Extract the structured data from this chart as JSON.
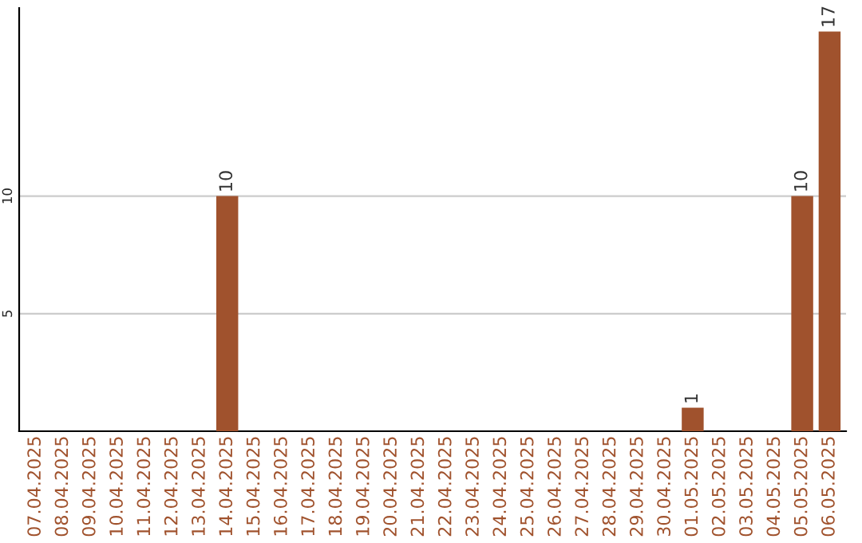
{
  "chart_data": {
    "type": "bar",
    "categories": [
      "07.04.2025",
      "08.04.2025",
      "09.04.2025",
      "10.04.2025",
      "11.04.2025",
      "12.04.2025",
      "13.04.2025",
      "14.04.2025",
      "15.04.2025",
      "16.04.2025",
      "17.04.2025",
      "18.04.2025",
      "19.04.2025",
      "20.04.2025",
      "21.04.2025",
      "22.04.2025",
      "23.04.2025",
      "24.04.2025",
      "25.04.2025",
      "26.04.2025",
      "27.04.2025",
      "28.04.2025",
      "29.04.2025",
      "30.04.2025",
      "01.05.2025",
      "02.05.2025",
      "03.05.2025",
      "04.05.2025",
      "05.05.2025",
      "06.05.2025"
    ],
    "values": [
      0,
      0,
      0,
      0,
      0,
      0,
      0,
      10,
      0,
      0,
      0,
      0,
      0,
      0,
      0,
      0,
      0,
      0,
      0,
      0,
      0,
      0,
      0,
      0,
      1,
      0,
      0,
      0,
      10,
      17
    ],
    "value_labels": [
      null,
      null,
      null,
      null,
      null,
      null,
      null,
      "10",
      null,
      null,
      null,
      null,
      null,
      null,
      null,
      null,
      null,
      null,
      null,
      null,
      null,
      null,
      null,
      null,
      "1",
      null,
      null,
      null,
      "10",
      "17"
    ],
    "color": "#a0522d",
    "ylim": [
      0,
      18
    ],
    "yticks": [
      5,
      10
    ],
    "grid": "y"
  }
}
